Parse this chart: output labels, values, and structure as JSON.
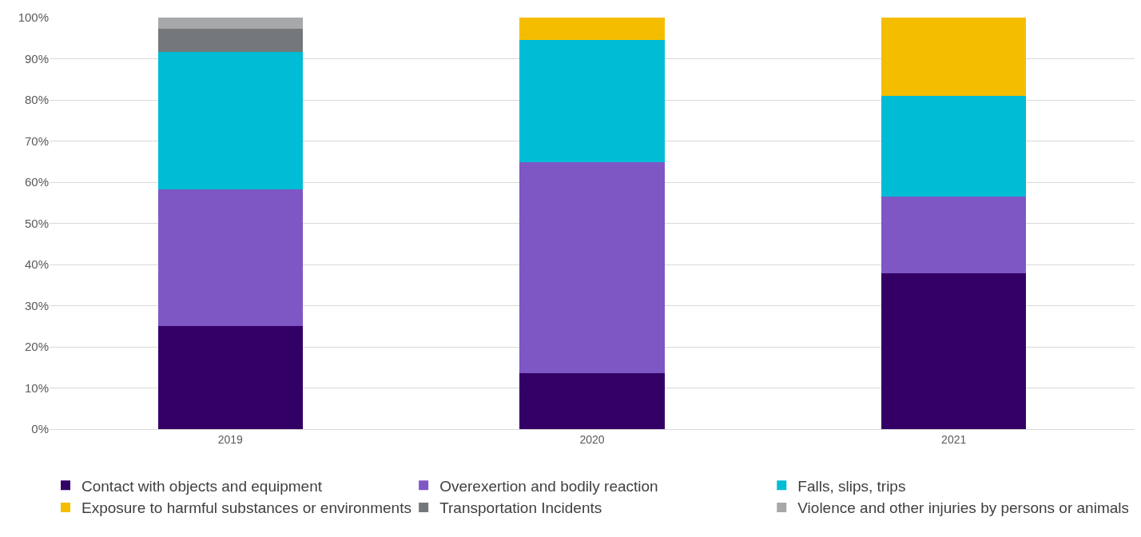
{
  "chart_data": {
    "type": "bar",
    "stacked": true,
    "categories": [
      "2019",
      "2020",
      "2021"
    ],
    "series": [
      {
        "name": "Contact with objects and equipment",
        "color": "#330066",
        "values": [
          25,
          13.5,
          37.9
        ]
      },
      {
        "name": "Overexertion and bodily reaction",
        "color": "#7e57c5",
        "values": [
          33.3,
          51.4,
          18.6
        ]
      },
      {
        "name": "Falls, slips, trips",
        "color": "#00bcd4",
        "values": [
          33.3,
          29.7,
          24.5
        ]
      },
      {
        "name": "Exposure to harmful substances or environments",
        "color": "#f5bd00",
        "values": [
          0,
          5.4,
          19.0
        ]
      },
      {
        "name": "Transportation Incidents",
        "color": "#75787b",
        "values": [
          5.6,
          0,
          0
        ]
      },
      {
        "name": "Violence and other injuries by persons or animals",
        "color": "#a7a8aa",
        "values": [
          2.8,
          0,
          0
        ]
      }
    ],
    "ylim": [
      0,
      100
    ],
    "yticks": [
      {
        "value": 0,
        "label": "0%"
      },
      {
        "value": 10,
        "label": "10%"
      },
      {
        "value": 20,
        "label": "20%"
      },
      {
        "value": 30,
        "label": "30%"
      },
      {
        "value": 40,
        "label": "40%"
      },
      {
        "value": 50,
        "label": "50%"
      },
      {
        "value": 60,
        "label": "60%"
      },
      {
        "value": 70,
        "label": "70%"
      },
      {
        "value": 80,
        "label": "80%"
      },
      {
        "value": 90,
        "label": "90%"
      },
      {
        "value": 100,
        "label": "100%"
      }
    ],
    "grid": "y",
    "legend": "bottom"
  }
}
